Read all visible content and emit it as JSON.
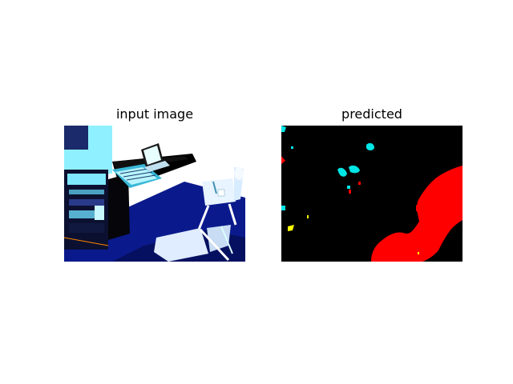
{
  "figure": {
    "panels": [
      {
        "title": "input image",
        "content": "photo of audio mixer on table with chairs, high-contrast normalized"
      },
      {
        "title": "predicted",
        "content": "segmentation mask"
      }
    ]
  },
  "colors": {
    "background": "#ffffff",
    "mask_background": "#000000",
    "class_red": "#ff0000",
    "class_cyan": "#00e5e5",
    "class_yellow": "#ffff00",
    "photo_blue": "#0a1a8c",
    "photo_cyan": "#7fe8ff"
  }
}
